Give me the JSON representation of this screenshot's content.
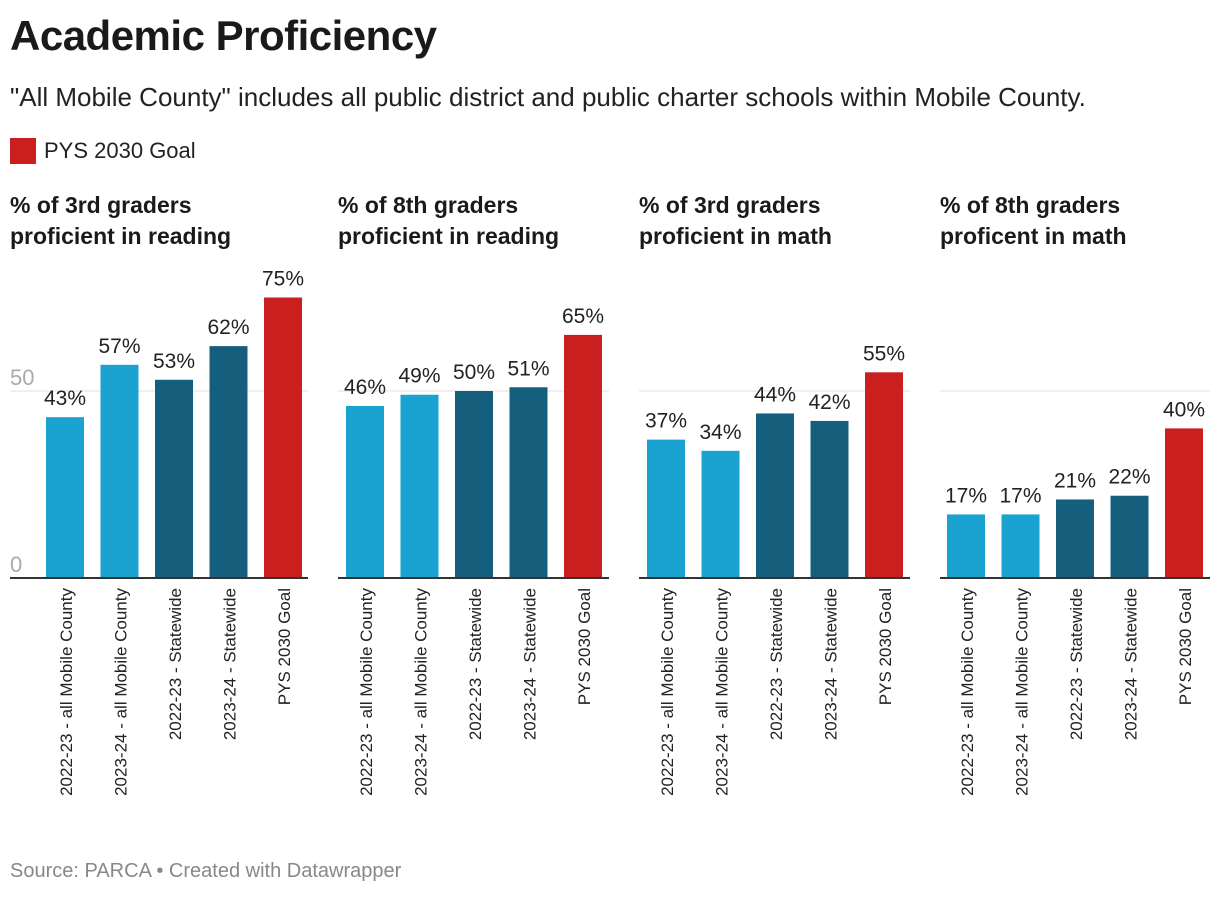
{
  "header": {
    "title": "Academic Proficiency",
    "subtitle": "\"All Mobile County\" includes all public district and public charter schools within Mobile County."
  },
  "legend": {
    "label": "PYS 2030 Goal",
    "color": "#c91f1f"
  },
  "colors": {
    "light": "#1aa3d1",
    "dark": "#155f7c",
    "goal": "#c91f1f"
  },
  "footer": {
    "source": "Source: PARCA • Created with Datawrapper"
  },
  "chart_data": [
    {
      "type": "bar",
      "title_line1": "% of 3rd graders",
      "title_line2": "proficient in reading",
      "categories": [
        "2022-23 - all Mobile County",
        "2023-24 - all Mobile County",
        "2022-23 - Statewide",
        "2023-24 - Statewide",
        "PYS 2030 Goal"
      ],
      "values": [
        43,
        57,
        53,
        62,
        75
      ],
      "labels": [
        "43%",
        "57%",
        "53%",
        "62%",
        "75%"
      ],
      "ylim": [
        0,
        75
      ],
      "yticks": [
        "0",
        "50"
      ]
    },
    {
      "type": "bar",
      "title_line1": "% of 8th graders",
      "title_line2": "proficient in reading",
      "categories": [
        "2022-23 - all Mobile County",
        "2023-24 - all Mobile County",
        "2022-23 - Statewide",
        "2023-24 - Statewide",
        "PYS 2030 Goal"
      ],
      "values": [
        46,
        49,
        50,
        51,
        65
      ],
      "labels": [
        "46%",
        "49%",
        "50%",
        "51%",
        "65%"
      ],
      "ylim": [
        0,
        75
      ],
      "yticks": []
    },
    {
      "type": "bar",
      "title_line1": "% of 3rd graders",
      "title_line2": "proficient in math",
      "categories": [
        "2022-23 - all Mobile County",
        "2023-24 - all Mobile County",
        "2022-23 - Statewide",
        "2023-24 - Statewide",
        "PYS 2030 Goal"
      ],
      "values": [
        37,
        34,
        44,
        42,
        55
      ],
      "labels": [
        "37%",
        "34%",
        "44%",
        "42%",
        "55%"
      ],
      "ylim": [
        0,
        75
      ],
      "yticks": []
    },
    {
      "type": "bar",
      "title_line1": "% of 8th graders",
      "title_line2": "proficent in math",
      "categories": [
        "2022-23 - all Mobile County",
        "2023-24 - all Mobile County",
        "2022-23 - Statewide",
        "2023-24 - Statewide",
        "PYS 2030 Goal"
      ],
      "values": [
        17,
        17,
        21,
        22,
        40
      ],
      "labels": [
        "17%",
        "17%",
        "21%",
        "22%",
        "40%"
      ],
      "ylim": [
        0,
        75
      ],
      "yticks": []
    }
  ]
}
